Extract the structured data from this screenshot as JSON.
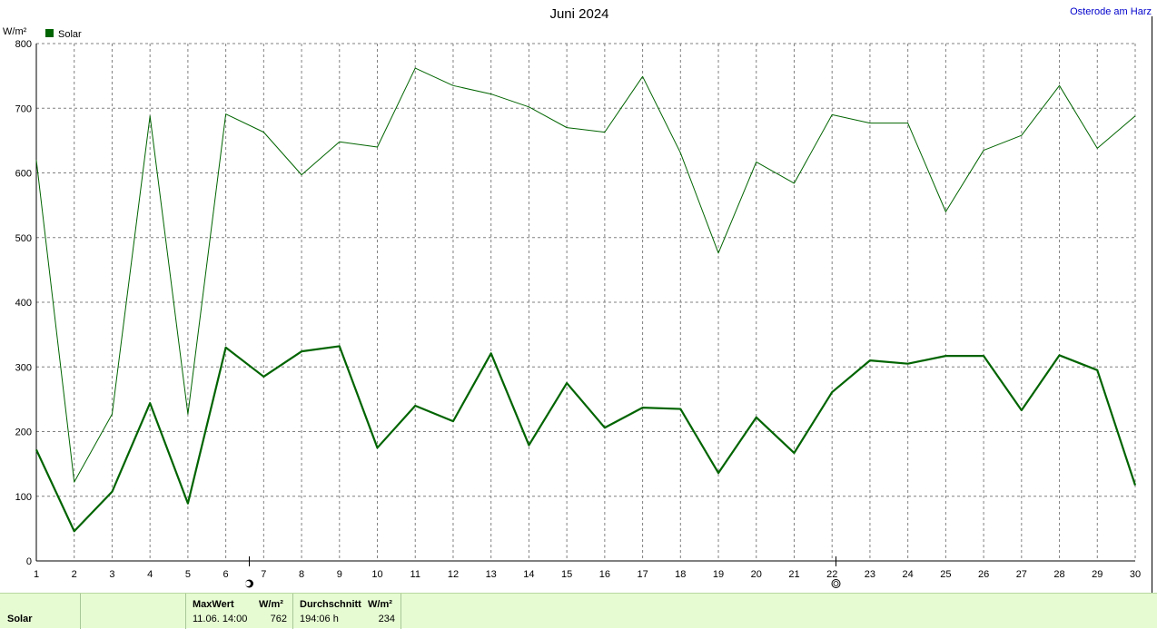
{
  "header": {
    "title": "Juni 2024",
    "location": "Osterode am Harz"
  },
  "legend": {
    "label": "Solar",
    "color": "#006400"
  },
  "chart_data": {
    "type": "line",
    "title": "Juni 2024",
    "ylabel": "W/m²",
    "xlabel": "",
    "x": [
      1,
      2,
      3,
      4,
      5,
      6,
      7,
      8,
      9,
      10,
      11,
      12,
      13,
      14,
      15,
      16,
      17,
      18,
      19,
      20,
      21,
      22,
      23,
      24,
      25,
      26,
      27,
      28,
      29,
      30
    ],
    "xlim": [
      1,
      30
    ],
    "ylim": [
      0,
      800
    ],
    "yticks": [
      0,
      100,
      200,
      300,
      400,
      500,
      600,
      700,
      800
    ],
    "grid": true,
    "legend_position": "top-left",
    "series": [
      {
        "role": "max",
        "color": "#006400",
        "values": [
          620,
          122,
          227,
          688,
          227,
          691,
          663,
          597,
          648,
          640,
          762,
          735,
          722,
          702,
          670,
          663,
          749,
          631,
          476,
          617,
          584,
          690,
          677,
          677,
          540,
          635,
          658,
          735,
          638,
          688
        ]
      },
      {
        "role": "average",
        "color": "#006400",
        "values": [
          172,
          46,
          107,
          244,
          89,
          330,
          285,
          324,
          332,
          175,
          240,
          216,
          321,
          179,
          275,
          206,
          237,
          235,
          136,
          222,
          167,
          261,
          310,
          305,
          317,
          317,
          233,
          318,
          295,
          117
        ]
      }
    ],
    "markers": [
      {
        "x": 6.6,
        "symbol": "full-moon"
      },
      {
        "x": 22.1,
        "symbol": "new-moon"
      }
    ]
  },
  "footer": {
    "series_label": "Solar",
    "max_header": "MaxWert",
    "max_unit": "W/m²",
    "max_date": "11.06.  14:00",
    "max_value": "762",
    "avg_header": "Durchschnitt",
    "avg_unit": "W/m²",
    "avg_duration": "194:06 h",
    "avg_value": "234"
  }
}
